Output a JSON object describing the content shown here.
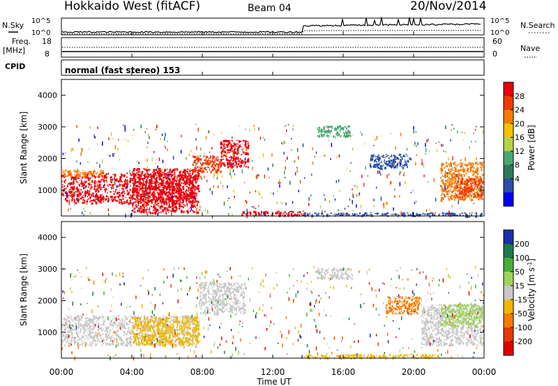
{
  "header": {
    "station": "Hokkaido West (fitACF)",
    "beam": "Beam 04",
    "date": "20/Nov/2014"
  },
  "strip": {
    "nsky_label": "N.Sky",
    "nsearch_label": "N.Search",
    "noise_ticks": [
      "10^5",
      "10^0"
    ],
    "freq_label": "Freq.",
    "freq_unit": "[MHz]",
    "freq_ticks": [
      "18",
      "8"
    ],
    "nave_label": "Nave",
    "nave_ticks": [
      "60",
      "0"
    ],
    "cpid_label": "CPID",
    "cpid_value": "normal (fast stereo) 153"
  },
  "axes": {
    "ylabel": "Slant Range [km]",
    "yticks": [
      "4000",
      "3000",
      "2000",
      "1000"
    ],
    "xticks": [
      "00:00",
      "04:00",
      "08:00",
      "12:00",
      "16:00",
      "20:00",
      "00:00"
    ],
    "xlabel": "Time UT"
  },
  "colorbars": {
    "power": {
      "label": "Power [dB]",
      "ticks": [
        "28",
        "24",
        "20",
        "16",
        "12",
        "8",
        "4"
      ],
      "colors": [
        "#e8000b",
        "#f23a00",
        "#f97a00",
        "#f2c200",
        "#b7d24a",
        "#4aa870",
        "#2e7a58",
        "#2a4fa8",
        "#0000ee"
      ]
    },
    "velocity": {
      "label": "Velocity [m s",
      "label_exp": "-1",
      "label_close": "]",
      "ticks": [
        "200",
        "100",
        "50",
        "15",
        "-15",
        "-50",
        "-100",
        "-200"
      ],
      "colors": [
        "#1a2fb0",
        "#1d7a4a",
        "#45b035",
        "#9fd45c",
        "#c8c8c8",
        "#f2b600",
        "#f57a00",
        "#e63a00",
        "#e00000"
      ]
    }
  },
  "chart_data": {
    "type": "heatmap",
    "panels": [
      "power",
      "velocity"
    ],
    "x_range": [
      "00:00",
      "24:00"
    ],
    "y_range_km": [
      180,
      4500
    ],
    "features": {
      "power": [
        {
          "t": [
            0.0,
            7.6
          ],
          "r": [
            600,
            1550
          ],
          "color": "#e8000b"
        },
        {
          "t": [
            0.0,
            2.4
          ],
          "r": [
            1450,
            1650
          ],
          "color": "#f97a00"
        },
        {
          "t": [
            4.0,
            7.8
          ],
          "r": [
            300,
            1700
          ],
          "color": "#e8000b"
        },
        {
          "t": [
            7.4,
            9.0
          ],
          "r": [
            1600,
            2100
          ],
          "color": "#f23a00"
        },
        {
          "t": [
            9.0,
            10.6
          ],
          "r": [
            1750,
            2600
          ],
          "color": "#e8000b"
        },
        {
          "t": [
            10.2,
            13.8
          ],
          "r": [
            200,
            350
          ],
          "color": "#e8000b"
        },
        {
          "t": [
            14.5,
            16.4
          ],
          "r": [
            2700,
            3050
          ],
          "color": "#4aa870"
        },
        {
          "t": [
            17.5,
            19.8
          ],
          "r": [
            1700,
            2150
          ],
          "color": "#2a4fa8"
        },
        {
          "t": [
            21.5,
            23.9
          ],
          "r": [
            700,
            1900
          ],
          "color": "#f97a00"
        },
        {
          "t": [
            22.4,
            23.9
          ],
          "r": [
            800,
            1400
          ],
          "color": "#f23a00"
        },
        {
          "t": [
            13.8,
            23.9
          ],
          "r": [
            200,
            300
          ],
          "color": "#2a4fa8"
        }
      ],
      "velocity": [
        {
          "t": [
            0.0,
            7.6
          ],
          "r": [
            600,
            1550
          ],
          "color": "#c8c8c8"
        },
        {
          "t": [
            4.0,
            7.8
          ],
          "r": [
            600,
            1500
          ],
          "color": "#f2b600"
        },
        {
          "t": [
            7.8,
            10.4
          ],
          "r": [
            1600,
            2600
          ],
          "color": "#c8c8c8"
        },
        {
          "t": [
            14.5,
            16.4
          ],
          "r": [
            2700,
            3050
          ],
          "color": "#c8c8c8"
        },
        {
          "t": [
            18.4,
            20.3
          ],
          "r": [
            1600,
            2150
          ],
          "color": "#f57a00"
        },
        {
          "t": [
            20.4,
            23.9
          ],
          "r": [
            600,
            1900
          ],
          "color": "#c8c8c8"
        },
        {
          "t": [
            13.8,
            21.5
          ],
          "r": [
            200,
            320
          ],
          "color": "#f2b600"
        },
        {
          "t": [
            21.5,
            23.9
          ],
          "r": [
            1200,
            1900
          ],
          "color": "#9fd45c"
        }
      ]
    }
  }
}
